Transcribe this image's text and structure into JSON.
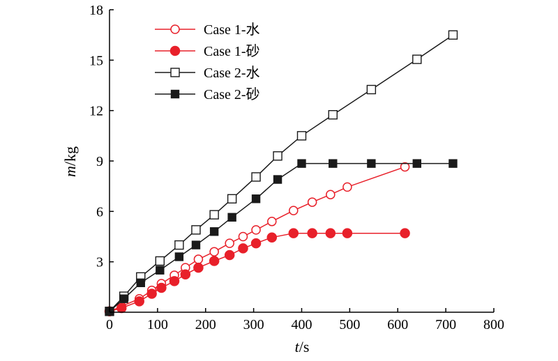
{
  "chart_data": {
    "type": "line",
    "xlabel_var": "t",
    "xlabel_unit": "/s",
    "ylabel_var": "m",
    "ylabel_unit": "/kg",
    "xlim": [
      0,
      800
    ],
    "ylim": [
      0,
      18
    ],
    "xticks": [
      0,
      100,
      200,
      300,
      400,
      500,
      600,
      700,
      800
    ],
    "yticks": [
      3,
      6,
      9,
      12,
      15,
      18
    ],
    "legend_position": "top-left",
    "series": [
      {
        "name": "Case 1-水",
        "color": "#e8202a",
        "marker": "circle-open",
        "x": [
          0,
          25,
          62,
          88,
          108,
          135,
          158,
          185,
          218,
          250,
          278,
          305,
          338,
          383,
          422,
          460,
          495,
          615
        ],
        "y": [
          0.05,
          0.35,
          0.8,
          1.3,
          1.7,
          2.2,
          2.65,
          3.15,
          3.6,
          4.1,
          4.5,
          4.9,
          5.4,
          6.05,
          6.55,
          7.0,
          7.45,
          8.65
        ]
      },
      {
        "name": "Case 1-砂",
        "color": "#e8202a",
        "marker": "circle-filled",
        "x": [
          0,
          25,
          62,
          88,
          108,
          135,
          158,
          185,
          218,
          250,
          278,
          305,
          338,
          383,
          422,
          460,
          495,
          615
        ],
        "y": [
          0.05,
          0.25,
          0.65,
          1.1,
          1.45,
          1.85,
          2.25,
          2.65,
          3.05,
          3.4,
          3.8,
          4.1,
          4.45,
          4.7,
          4.7,
          4.7,
          4.7,
          4.7
        ]
      },
      {
        "name": "Case 2-水",
        "color": "#1a1a1a",
        "marker": "square-open",
        "x": [
          0,
          30,
          65,
          105,
          145,
          180,
          218,
          255,
          305,
          350,
          400,
          465,
          545,
          640,
          715
        ],
        "y": [
          0.05,
          0.95,
          2.1,
          3.05,
          4.0,
          4.9,
          5.8,
          6.75,
          8.05,
          9.3,
          10.5,
          11.75,
          13.25,
          15.05,
          16.5
        ]
      },
      {
        "name": "Case 2-砂",
        "color": "#1a1a1a",
        "marker": "square-filled",
        "x": [
          0,
          30,
          65,
          105,
          145,
          180,
          218,
          255,
          305,
          350,
          400,
          465,
          545,
          640,
          715
        ],
        "y": [
          0.05,
          0.8,
          1.75,
          2.5,
          3.3,
          4.0,
          4.8,
          5.65,
          6.75,
          7.9,
          8.85,
          8.85,
          8.85,
          8.85,
          8.85
        ]
      }
    ]
  }
}
